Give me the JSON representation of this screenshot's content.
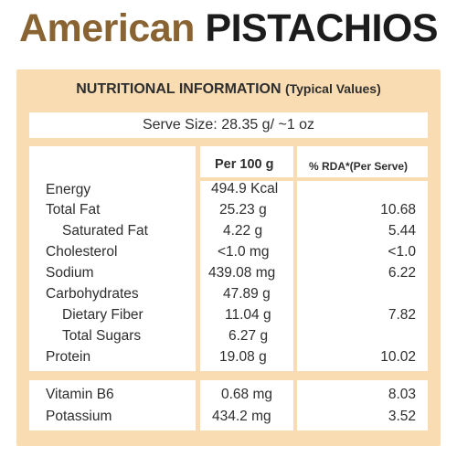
{
  "brand": {
    "word1": "American",
    "word2": "PISTACHIOS"
  },
  "table": {
    "title": "NUTRITIONAL INFORMATION",
    "subtitle": "(Typical Values)",
    "serve_size": "Serve Size: 28.35 g/ ~1 oz",
    "col_per100": "Per 100 g",
    "col_rda": "% RDA*(Per Serve)",
    "rows": [
      {
        "name": "Energy",
        "per100": "494.9 Kcal",
        "rda": ""
      },
      {
        "name": "Total Fat",
        "per100": "25.23 g",
        "rda": "10.68"
      },
      {
        "name": "Saturated Fat",
        "per100": "4.22 g",
        "rda": "5.44"
      },
      {
        "name": "Cholesterol",
        "per100": "<1.0 mg",
        "rda": "<1.0"
      },
      {
        "name": "Sodium",
        "per100": "439.08 mg",
        "rda": "6.22"
      },
      {
        "name": "Carbohydrates",
        "per100": "47.89 g",
        "rda": ""
      },
      {
        "name": "Dietary Fiber",
        "per100": "11.04 g",
        "rda": "7.82"
      },
      {
        "name": "Total Sugars",
        "per100": "6.27 g",
        "rda": ""
      },
      {
        "name": "Protein",
        "per100": "19.08 g",
        "rda": "10.02"
      },
      {
        "name": "Vitamin B6",
        "per100": "0.68 mg",
        "rda": "8.03"
      },
      {
        "name": "Potassium",
        "per100": "434.2 mg",
        "rda": "3.52"
      }
    ]
  },
  "colors": {
    "brand_brown": "#8a6332",
    "panel_peach": "#f9dcb2",
    "text_dark": "#2e2e2e"
  }
}
